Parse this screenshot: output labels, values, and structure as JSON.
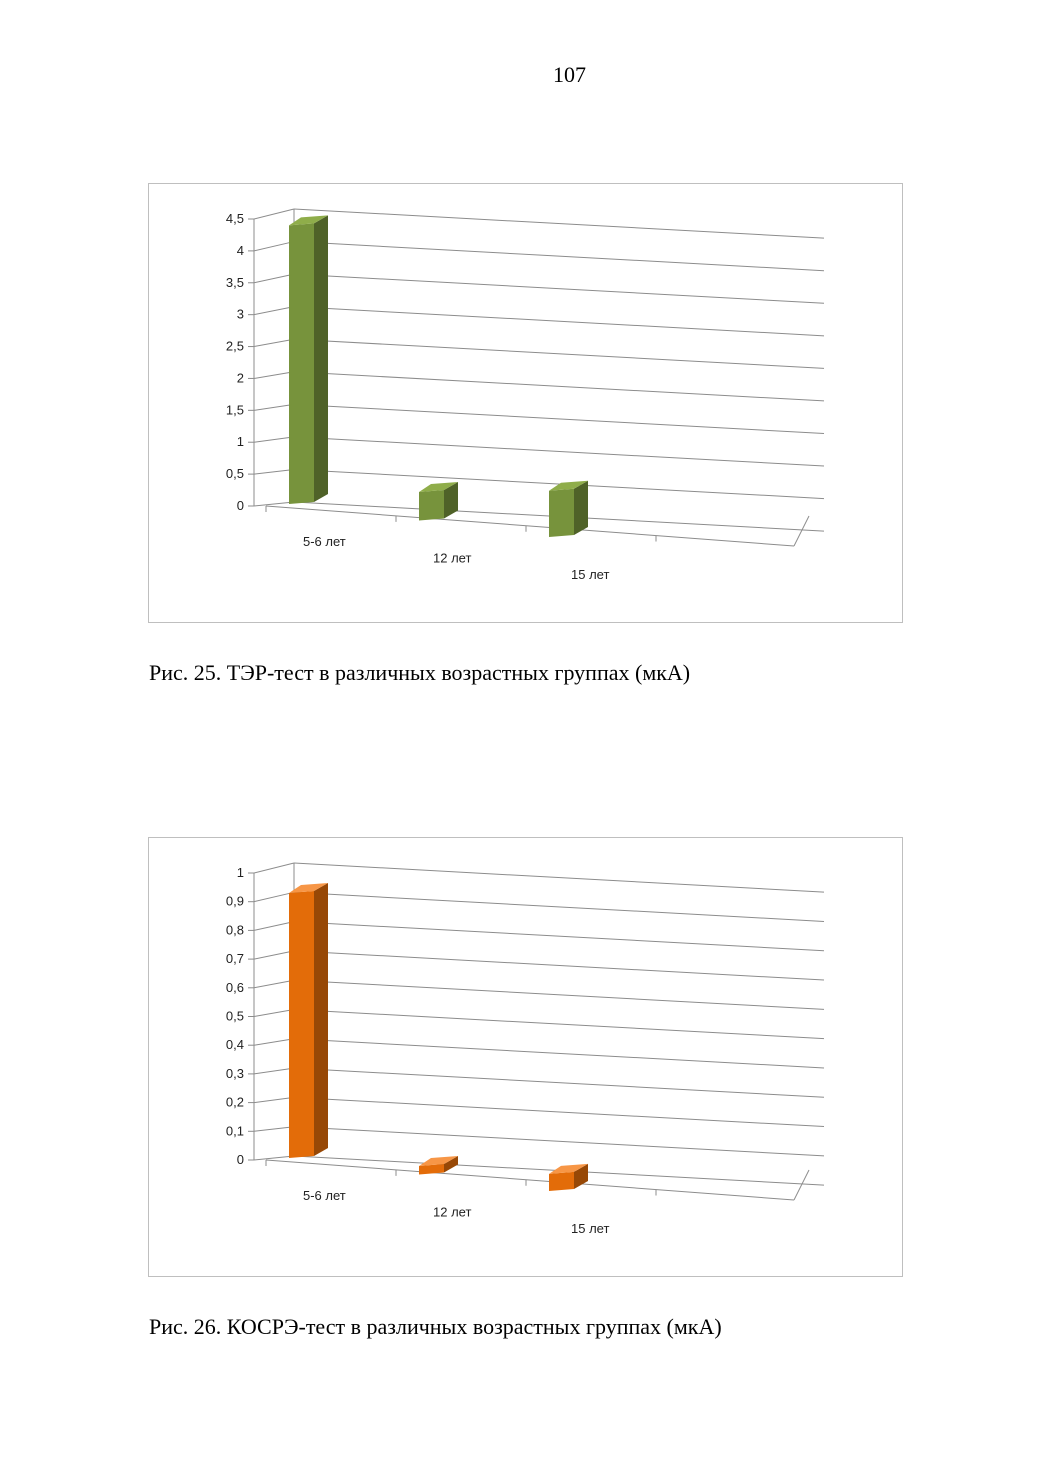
{
  "page": {
    "number": "107"
  },
  "figures": [
    {
      "caption": "Рис. 25. ТЭР-тест в различных возрастных группах (мкА)"
    },
    {
      "caption": "Рис. 26. КОСРЭ-тест в различных возрастных группах (мкА)"
    }
  ],
  "chart_data": [
    {
      "type": "bar",
      "categories": [
        "5-6 лет",
        "12 лет",
        "15 лет"
      ],
      "series": [
        {
          "values": [
            4.4,
            0.45,
            0.73
          ]
        }
      ],
      "ylim": [
        0,
        4.5
      ],
      "yticks": [
        "0",
        "0,5",
        "1",
        "1,5",
        "2",
        "2,5",
        "3",
        "3,5",
        "4",
        "4,5"
      ],
      "ytick_values": [
        0,
        0.5,
        1,
        1.5,
        2,
        2.5,
        3,
        3.5,
        4,
        4.5
      ],
      "colors": {
        "front": "#77933c",
        "side": "#4f6228",
        "top": "#8fad4a"
      },
      "grid": true,
      "legend": "none"
    },
    {
      "type": "bar",
      "categories": [
        "5-6 лет",
        "12 лет",
        "15 лет"
      ],
      "series": [
        {
          "values": [
            0.93,
            0.03,
            0.06
          ]
        }
      ],
      "ylim": [
        0,
        1
      ],
      "yticks": [
        "0",
        "0,1",
        "0,2",
        "0,3",
        "0,4",
        "0,5",
        "0,6",
        "0,7",
        "0,8",
        "0,9",
        "1"
      ],
      "ytick_values": [
        0,
        0.1,
        0.2,
        0.3,
        0.4,
        0.5,
        0.6,
        0.7,
        0.8,
        0.9,
        1
      ],
      "colors": {
        "front": "#e36c09",
        "side": "#974806",
        "top": "#f79646"
      },
      "grid": true,
      "legend": "none"
    }
  ]
}
